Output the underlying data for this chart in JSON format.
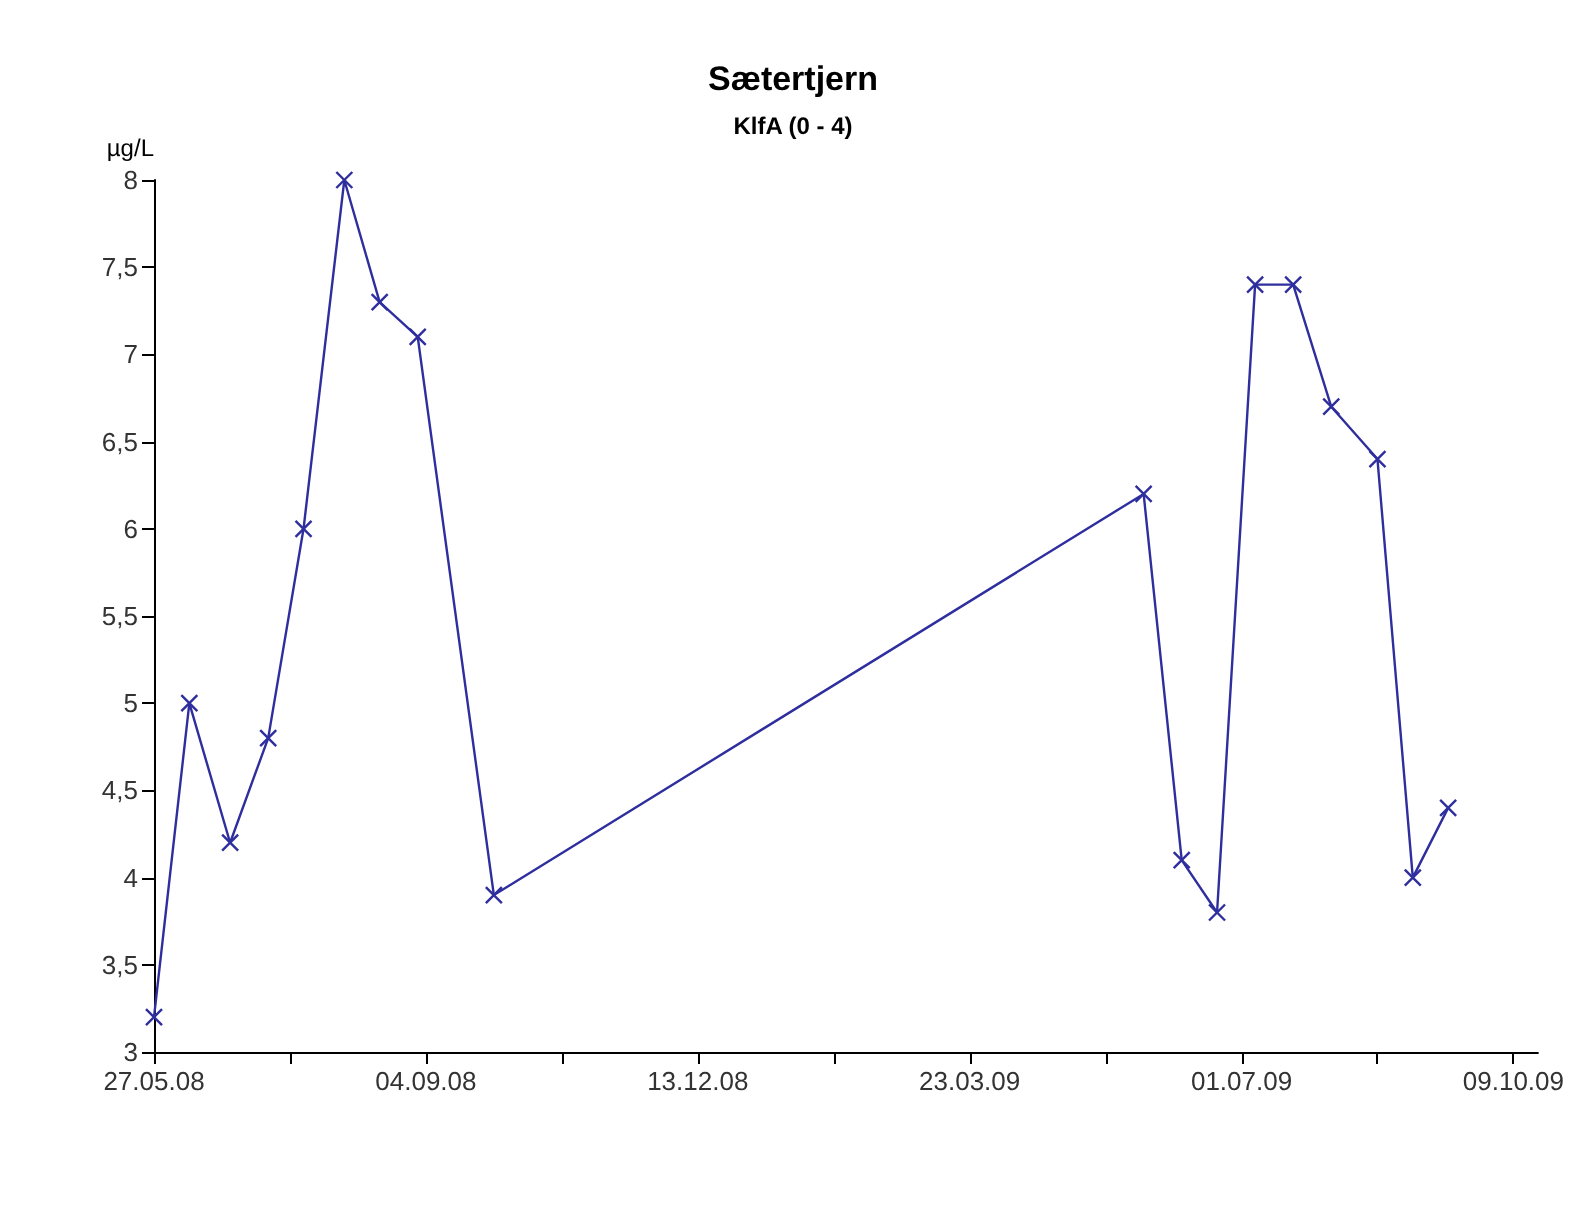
{
  "chart_data": {
    "type": "line",
    "title": "Sætertjern",
    "subtitle": "KlfA (0 - 4)",
    "ylabel": "µg/L",
    "x": [
      "2008-05-27",
      "2008-06-09",
      "2008-06-24",
      "2008-07-08",
      "2008-07-21",
      "2008-08-05",
      "2008-08-18",
      "2008-09-01",
      "2008-09-29",
      "2009-05-26",
      "2009-06-09",
      "2009-06-22",
      "2009-07-06",
      "2009-07-20",
      "2009-08-03",
      "2009-08-20",
      "2009-09-02",
      "2009-09-15"
    ],
    "series": [
      {
        "color": "#2e2e9e",
        "values": [
          3.2,
          5.0,
          4.2,
          4.8,
          6.0,
          8.0,
          7.3,
          7.1,
          3.9,
          6.2,
          4.1,
          3.8,
          7.4,
          7.4,
          6.7,
          6.4,
          4.0,
          4.4
        ]
      }
    ],
    "xlim": [
      "2008-05-27",
      "2009-10-18"
    ],
    "xticks": [
      {
        "value": "2008-05-27",
        "label": "27.05.08"
      },
      {
        "value": "2008-07-16",
        "label": null
      },
      {
        "value": "2008-09-04",
        "label": "04.09.08"
      },
      {
        "value": "2008-10-24",
        "label": null
      },
      {
        "value": "2008-12-13",
        "label": "13.12.08"
      },
      {
        "value": "2009-02-01",
        "label": null
      },
      {
        "value": "2009-03-23",
        "label": "23.03.09"
      },
      {
        "value": "2009-05-12",
        "label": null
      },
      {
        "value": "2009-07-01",
        "label": "01.07.09"
      },
      {
        "value": "2009-08-20",
        "label": null
      },
      {
        "value": "2009-10-09",
        "label": "09.10.09"
      }
    ],
    "ylim": [
      3,
      8
    ],
    "yticks": [
      3,
      {
        "value": 3.5,
        "label": "3,5"
      },
      4,
      {
        "value": 4.5,
        "label": "4,5"
      },
      5,
      {
        "value": 5.5,
        "label": "5,5"
      },
      6,
      {
        "value": 6.5,
        "label": "6,5"
      },
      7,
      {
        "value": 7.5,
        "label": "7,5"
      },
      8
    ],
    "grid": false,
    "marker": "cross",
    "line_style": "solid"
  }
}
